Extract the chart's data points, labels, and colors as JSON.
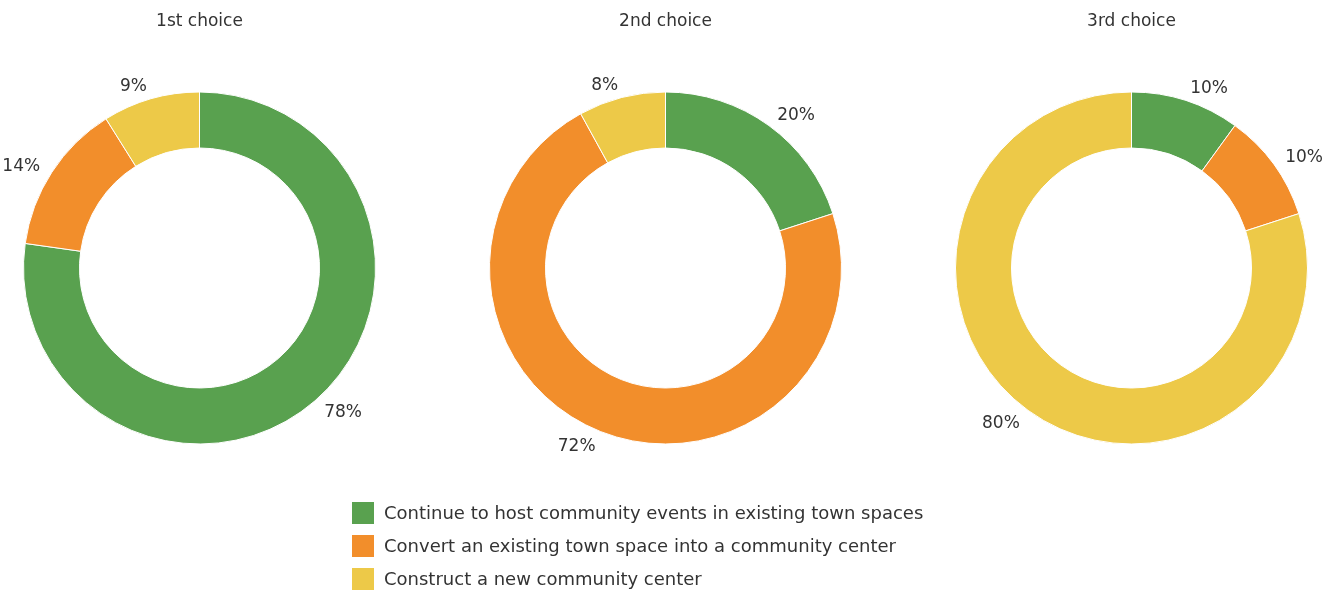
{
  "chart_data": [
    {
      "type": "donut",
      "title": "1st choice",
      "categories": [
        "Continue to host community events in existing town spaces",
        "Convert an existing town space into a community center",
        "Construct a new community center"
      ],
      "values": [
        78,
        14,
        9
      ],
      "value_labels": [
        "78%",
        "14%",
        "9%"
      ],
      "colors": [
        "#59a14f",
        "#f28e2b",
        "#edc948"
      ],
      "legend": "bottom"
    },
    {
      "type": "donut",
      "title": "2nd choice",
      "categories": [
        null,
        null,
        null
      ],
      "values": [
        20,
        72,
        8
      ],
      "value_labels": [
        "20%",
        "72%",
        "8%"
      ],
      "colors": [
        "#59a14f",
        "#f28e2b",
        "#edc948"
      ]
    },
    {
      "type": "donut",
      "title": "3rd choice",
      "categories": [
        null,
        null,
        null
      ],
      "values": [
        10,
        10,
        80
      ],
      "value_labels": [
        "10%",
        "10%",
        "80%"
      ],
      "colors": [
        "#59a14f",
        "#f28e2b",
        "#edc948"
      ]
    }
  ]
}
